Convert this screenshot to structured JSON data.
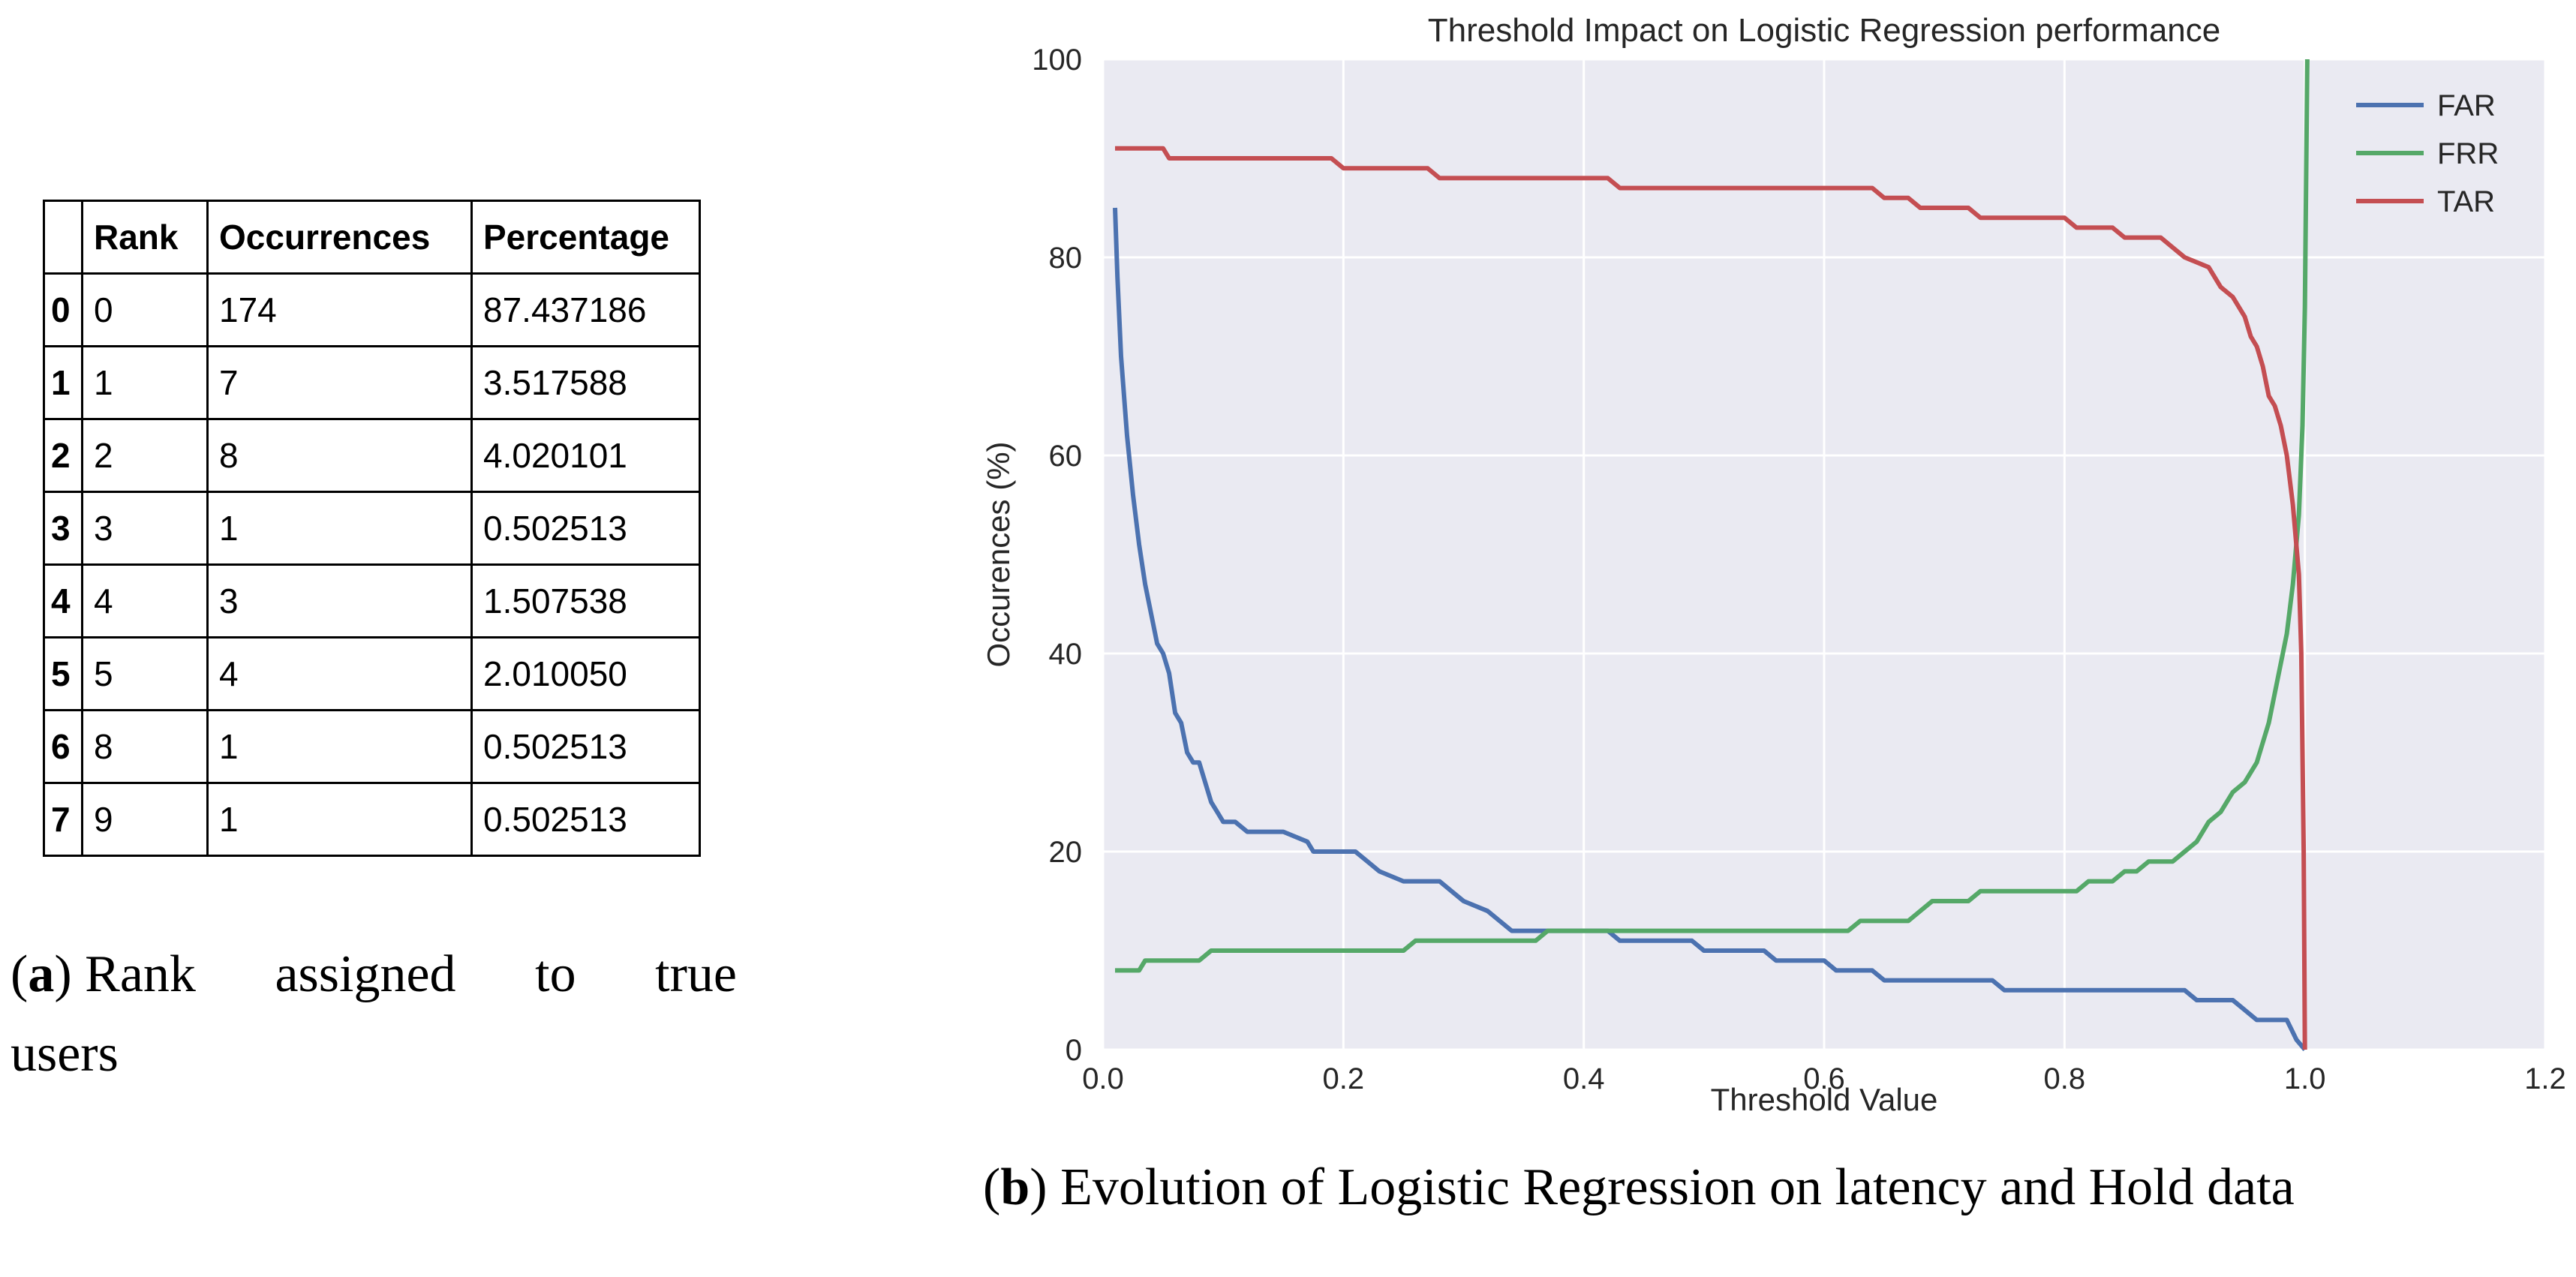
{
  "table": {
    "columns": [
      "",
      "Rank",
      "Occurrences",
      "Percentage"
    ],
    "rows": [
      {
        "index": "0",
        "rank": "0",
        "occurrences": "174",
        "percentage": "87.437186"
      },
      {
        "index": "1",
        "rank": "1",
        "occurrences": "7",
        "percentage": "3.517588"
      },
      {
        "index": "2",
        "rank": "2",
        "occurrences": "8",
        "percentage": "4.020101"
      },
      {
        "index": "3",
        "rank": "3",
        "occurrences": "1",
        "percentage": "0.502513"
      },
      {
        "index": "4",
        "rank": "4",
        "occurrences": "3",
        "percentage": "1.507538"
      },
      {
        "index": "5",
        "rank": "5",
        "occurrences": "4",
        "percentage": "2.010050"
      },
      {
        "index": "6",
        "rank": "8",
        "occurrences": "1",
        "percentage": "0.502513"
      },
      {
        "index": "7",
        "rank": "9",
        "occurrences": "1",
        "percentage": "0.502513"
      }
    ]
  },
  "captions": {
    "a": {
      "label": "a",
      "words_line1": [
        "Rank",
        "assigned",
        "to",
        "true"
      ],
      "line2": "users"
    },
    "b": {
      "label": "b",
      "text": "Evolution of Logistic Regression on latency and Hold data"
    }
  },
  "chart_data": {
    "type": "line",
    "title": "Threshold Impact on Logistic Regression performance",
    "xlabel": "Threshold Value",
    "ylabel": "Occurences (%)",
    "xlim": [
      0.0,
      1.2
    ],
    "ylim": [
      0,
      100
    ],
    "xticks": [
      "0.0",
      "0.2",
      "0.4",
      "0.6",
      "0.8",
      "1.0",
      "1.2"
    ],
    "yticks": [
      "0",
      "20",
      "40",
      "60",
      "80",
      "100"
    ],
    "grid": true,
    "legend": "top-right",
    "colors": {
      "FAR": "#4c72b0",
      "FRR": "#55a868",
      "TAR": "#c44e52",
      "background": "#eaeaf2"
    },
    "series": [
      {
        "name": "FAR",
        "color": "#4c72b0",
        "points": [
          [
            0.01,
            85
          ],
          [
            0.012,
            78
          ],
          [
            0.015,
            70
          ],
          [
            0.02,
            62
          ],
          [
            0.025,
            56
          ],
          [
            0.03,
            51
          ],
          [
            0.035,
            47
          ],
          [
            0.04,
            44
          ],
          [
            0.045,
            41
          ],
          [
            0.05,
            40
          ],
          [
            0.055,
            38
          ],
          [
            0.06,
            34
          ],
          [
            0.065,
            33
          ],
          [
            0.07,
            30
          ],
          [
            0.075,
            29
          ],
          [
            0.08,
            29
          ],
          [
            0.085,
            27
          ],
          [
            0.09,
            25
          ],
          [
            0.095,
            24
          ],
          [
            0.1,
            23
          ],
          [
            0.11,
            23
          ],
          [
            0.12,
            22
          ],
          [
            0.15,
            22
          ],
          [
            0.17,
            21
          ],
          [
            0.175,
            20
          ],
          [
            0.19,
            20
          ],
          [
            0.21,
            20
          ],
          [
            0.22,
            19
          ],
          [
            0.23,
            18
          ],
          [
            0.24,
            17.5
          ],
          [
            0.25,
            17
          ],
          [
            0.28,
            17
          ],
          [
            0.29,
            16
          ],
          [
            0.3,
            15
          ],
          [
            0.32,
            14
          ],
          [
            0.33,
            13
          ],
          [
            0.34,
            12
          ],
          [
            0.42,
            12
          ],
          [
            0.43,
            11
          ],
          [
            0.49,
            11
          ],
          [
            0.5,
            10
          ],
          [
            0.55,
            10
          ],
          [
            0.56,
            9
          ],
          [
            0.6,
            9
          ],
          [
            0.61,
            8
          ],
          [
            0.64,
            8
          ],
          [
            0.65,
            7
          ],
          [
            0.74,
            7
          ],
          [
            0.75,
            6
          ],
          [
            0.9,
            6
          ],
          [
            0.91,
            5
          ],
          [
            0.94,
            5
          ],
          [
            0.95,
            4
          ],
          [
            0.96,
            3
          ],
          [
            0.985,
            3
          ],
          [
            0.993,
            1
          ],
          [
            1.0,
            0
          ]
        ]
      },
      {
        "name": "FRR",
        "color": "#55a868",
        "points": [
          [
            0.01,
            8
          ],
          [
            0.03,
            8
          ],
          [
            0.035,
            9
          ],
          [
            0.08,
            9
          ],
          [
            0.09,
            10
          ],
          [
            0.25,
            10
          ],
          [
            0.26,
            11
          ],
          [
            0.36,
            11
          ],
          [
            0.37,
            12
          ],
          [
            0.62,
            12
          ],
          [
            0.63,
            13
          ],
          [
            0.67,
            13
          ],
          [
            0.68,
            14
          ],
          [
            0.69,
            15
          ],
          [
            0.72,
            15
          ],
          [
            0.73,
            16
          ],
          [
            0.81,
            16
          ],
          [
            0.82,
            17
          ],
          [
            0.84,
            17
          ],
          [
            0.85,
            18
          ],
          [
            0.86,
            18
          ],
          [
            0.87,
            19
          ],
          [
            0.89,
            19
          ],
          [
            0.9,
            20
          ],
          [
            0.91,
            21
          ],
          [
            0.92,
            23
          ],
          [
            0.93,
            24
          ],
          [
            0.94,
            26
          ],
          [
            0.95,
            27
          ],
          [
            0.96,
            29
          ],
          [
            0.965,
            31
          ],
          [
            0.97,
            33
          ],
          [
            0.975,
            36
          ],
          [
            0.98,
            39
          ],
          [
            0.985,
            42
          ],
          [
            0.99,
            47
          ],
          [
            0.995,
            54
          ],
          [
            0.998,
            63
          ],
          [
            1.0,
            75
          ],
          [
            1.002,
            100
          ]
        ]
      },
      {
        "name": "TAR",
        "color": "#c44e52",
        "points": [
          [
            0.01,
            91
          ],
          [
            0.05,
            91
          ],
          [
            0.055,
            90
          ],
          [
            0.19,
            90
          ],
          [
            0.2,
            89
          ],
          [
            0.27,
            89
          ],
          [
            0.28,
            88
          ],
          [
            0.42,
            88
          ],
          [
            0.43,
            87
          ],
          [
            0.64,
            87
          ],
          [
            0.65,
            86
          ],
          [
            0.67,
            86
          ],
          [
            0.68,
            85
          ],
          [
            0.72,
            85
          ],
          [
            0.73,
            84
          ],
          [
            0.8,
            84
          ],
          [
            0.81,
            83
          ],
          [
            0.84,
            83
          ],
          [
            0.85,
            82
          ],
          [
            0.88,
            82
          ],
          [
            0.89,
            81
          ],
          [
            0.9,
            80
          ],
          [
            0.92,
            79
          ],
          [
            0.93,
            77
          ],
          [
            0.94,
            76
          ],
          [
            0.95,
            74
          ],
          [
            0.955,
            72
          ],
          [
            0.96,
            71
          ],
          [
            0.965,
            69
          ],
          [
            0.97,
            66
          ],
          [
            0.975,
            65
          ],
          [
            0.98,
            63
          ],
          [
            0.985,
            60
          ],
          [
            0.99,
            55
          ],
          [
            0.995,
            48
          ],
          [
            0.997,
            40
          ],
          [
            0.999,
            20
          ],
          [
            1.0,
            0
          ]
        ]
      }
    ]
  }
}
